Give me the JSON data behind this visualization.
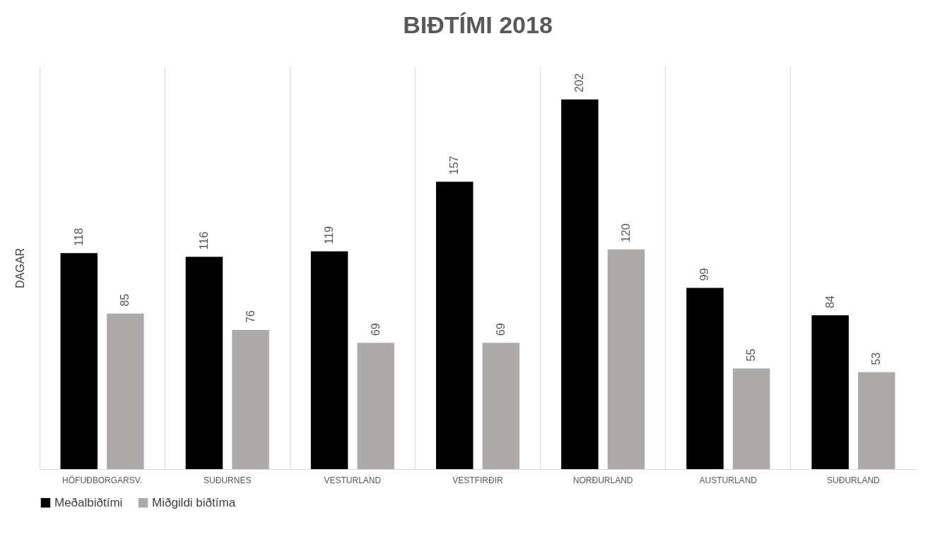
{
  "chart_data": {
    "type": "bar",
    "title": "BIÐTÍMI 2018",
    "ylabel": "DAGAR",
    "categories": [
      "HÖFUÐBORGARSV.",
      "SUÐURNES",
      "VESTURLAND",
      "VESTFIRÐIR",
      "NORÐURLAND",
      "AUSTURLAND",
      "SUÐURLAND"
    ],
    "series": [
      {
        "name": "Meðalbiðtími",
        "color": "#000000",
        "values": [
          118,
          116,
          119,
          157,
          202,
          99,
          84
        ]
      },
      {
        "name": "Miðgildi biðtíma",
        "color": "#aeaaaa",
        "values": [
          85,
          76,
          69,
          69,
          120,
          55,
          53
        ]
      }
    ],
    "data_labels": true,
    "grid": "x",
    "legend": "bottom",
    "tick_labels": "x"
  }
}
